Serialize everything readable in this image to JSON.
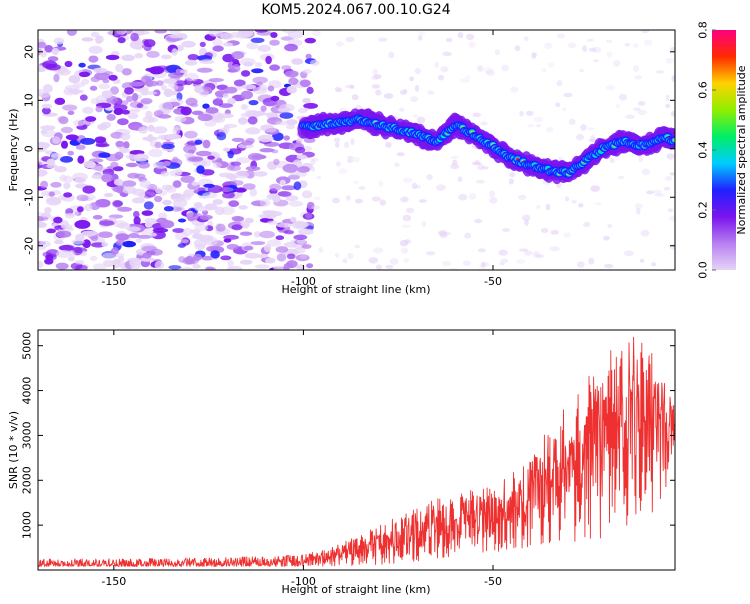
{
  "figure": {
    "title": "KOM5.2024.067.00.10.G24"
  },
  "chart_data": [
    {
      "type": "heatmap",
      "xlabel": "Height of straight line (km)",
      "ylabel": "Frequency (Hz)",
      "xlim": [
        -170,
        -2
      ],
      "ylim": [
        -25,
        24.5
      ],
      "x_ticks": [
        -150,
        -100,
        -50
      ],
      "y_ticks": [
        20,
        10,
        0,
        -10,
        -20
      ],
      "colorbar": {
        "label": "Normalized spectral amplitude",
        "range": [
          0.0,
          0.8
        ],
        "ticks": [
          0.0,
          0.2,
          0.4,
          0.6,
          0.8
        ],
        "colormap": "rainbow",
        "colors": [
          "#e6d4f7",
          "#b77ff0",
          "#7a14ee",
          "#2020ff",
          "#00ccff",
          "#00ee66",
          "#90ee00",
          "#ffd200",
          "#ff2a00",
          "#ff0080"
        ]
      },
      "signal_ridge": {
        "x": [
          -100,
          -95,
          -90,
          -85,
          -80,
          -75,
          -70,
          -65,
          -60,
          -55,
          -50,
          -45,
          -40,
          -35,
          -30,
          -25,
          -20,
          -15,
          -10,
          -5,
          -2
        ],
        "y": [
          4.5,
          5.0,
          5.5,
          6.0,
          5.0,
          4.0,
          3.0,
          1.5,
          5.0,
          3.0,
          0.5,
          -2.0,
          -3.5,
          -4.5,
          -5.0,
          -2.0,
          0.5,
          1.5,
          0.5,
          2.5,
          1.5
        ]
      },
      "noise_region": {
        "x": [
          -170,
          -100
        ],
        "y": [
          -25,
          24.5
        ]
      }
    },
    {
      "type": "line",
      "xlabel": "Height of straight line (km)",
      "ylabel": "SNR (10 * v/v)",
      "xlim": [
        -170,
        -2
      ],
      "ylim": [
        0,
        5350
      ],
      "x_ticks": [
        -150,
        -100,
        -50
      ],
      "y_ticks": [
        1000,
        2000,
        3000,
        4000,
        5000
      ],
      "color": "#ee3030",
      "envelope": {
        "x": [
          -170,
          -150,
          -120,
          -100,
          -95,
          -90,
          -85,
          -80,
          -75,
          -70,
          -65,
          -60,
          -55,
          -50,
          -45,
          -40,
          -35,
          -30,
          -25,
          -20,
          -15,
          -10,
          -5,
          -2
        ],
        "lower": [
          80,
          80,
          80,
          80,
          80,
          90,
          100,
          120,
          150,
          200,
          250,
          300,
          350,
          400,
          450,
          500,
          550,
          600,
          650,
          700,
          800,
          1000,
          1500,
          2900
        ],
        "upper": [
          250,
          250,
          280,
          350,
          450,
          600,
          800,
          1000,
          1200,
          1500,
          1600,
          1700,
          1800,
          1900,
          2200,
          2600,
          3200,
          3800,
          4300,
          4800,
          5300,
          5300,
          4600,
          3600
        ]
      }
    }
  ]
}
